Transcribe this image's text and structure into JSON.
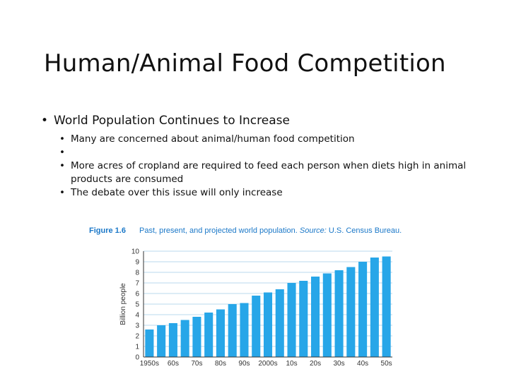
{
  "slide": {
    "title": "Human/Animal Food Competition",
    "bullet_main": "World Population Continues to Increase",
    "sub_bullets": [
      "Many are concerned about animal/human food competition",
      "",
      "More acres of cropland are required to feed each person when diets high in animal products are consumed",
      "The debate over this issue will only increase"
    ]
  },
  "figure": {
    "number": "Figure 1.6",
    "caption": "Past, present, and projected world population.",
    "source_label": "Source:",
    "source": "U.S. Census Bureau."
  },
  "chart_data": {
    "type": "bar",
    "ylabel": "Billion people",
    "ylim": [
      0,
      10
    ],
    "yticks": [
      "0",
      "1",
      "2",
      "3",
      "4",
      "5",
      "6",
      "7",
      "8",
      "9",
      "10"
    ],
    "grid": true,
    "category_labels": [
      "1950s",
      "60s",
      "70s",
      "80s",
      "90s",
      "2000s",
      "10s",
      "20s",
      "30s",
      "40s",
      "50s"
    ],
    "values": [
      2.6,
      3.0,
      3.2,
      3.5,
      3.8,
      4.2,
      4.5,
      5.0,
      5.1,
      5.8,
      6.1,
      6.4,
      7.0,
      7.2,
      7.6,
      7.9,
      8.2,
      8.5,
      9.0,
      9.4,
      9.5
    ],
    "colors": {
      "bar": "#27a6e8",
      "grid": "#b8d8ee",
      "axis": "#333333",
      "caption": "#1b78c8"
    }
  }
}
